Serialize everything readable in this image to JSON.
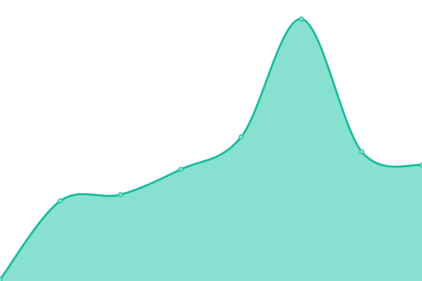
{
  "chart_data": {
    "type": "area",
    "title": "",
    "xlabel": "",
    "ylabel": "",
    "x": [
      0,
      1,
      2,
      3,
      4,
      5,
      6,
      7
    ],
    "values": [
      2,
      114,
      123,
      159,
      205,
      373,
      184,
      165
    ],
    "xlim": [
      0,
      7
    ],
    "ylim": [
      0,
      400
    ],
    "grid": false,
    "smooth": true,
    "colors": {
      "line": "#1abc9c",
      "fill": "#88e0d0",
      "marker_fill": "#88e0d0"
    }
  }
}
